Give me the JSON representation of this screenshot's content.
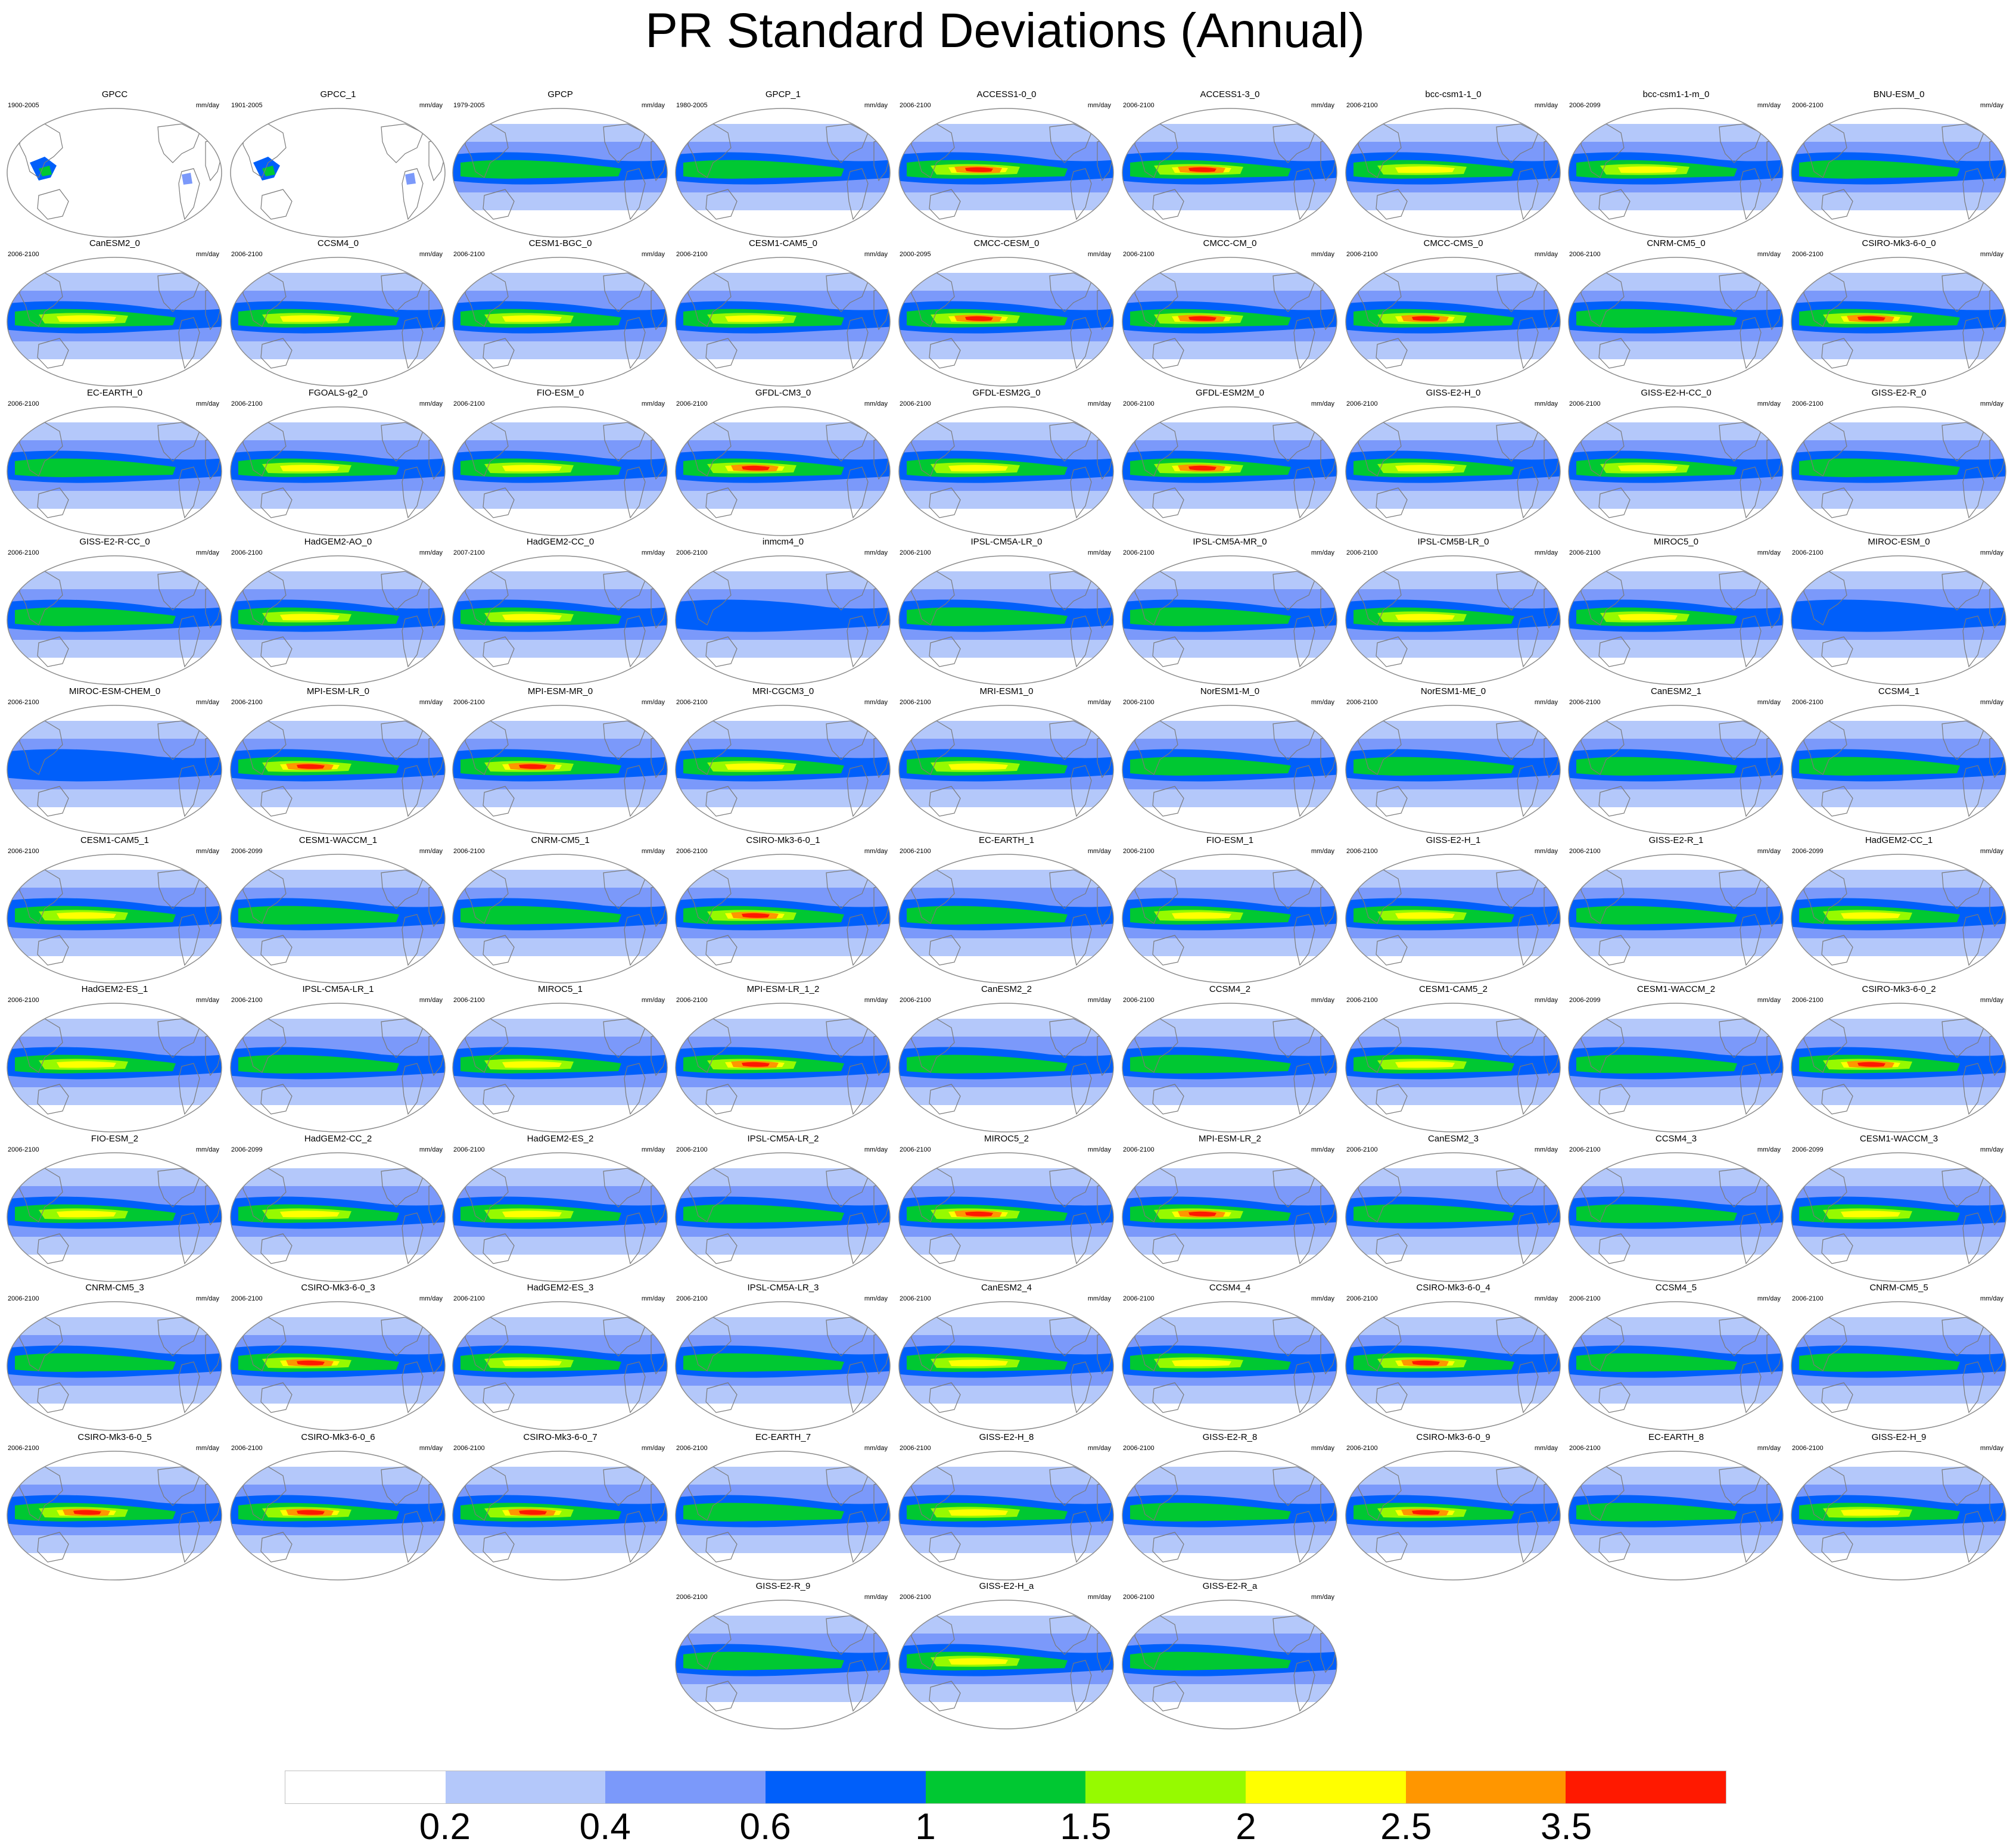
{
  "title": "PR Standard Deviations (Annual)",
  "units": "mm/day",
  "colorbar": {
    "colors": [
      "#ffffff",
      "#b4c8fa",
      "#7b99fa",
      "#005ffa",
      "#00c832",
      "#96fa00",
      "#ffff00",
      "#ff9600",
      "#ff1900"
    ],
    "labels": [
      "0.2",
      "0.4",
      "0.6",
      "1",
      "1.5",
      "2",
      "2.5",
      "3.5"
    ]
  },
  "panels": [
    {
      "name": "GPCC",
      "years": "1900-2005",
      "intensity": 0
    },
    {
      "name": "GPCC_1",
      "years": "1901-2005",
      "intensity": 0
    },
    {
      "name": "GPCP",
      "years": "1979-2005",
      "intensity": 2
    },
    {
      "name": "GPCP_1",
      "years": "1980-2005",
      "intensity": 2
    },
    {
      "name": "ACCESS1-0_0",
      "years": "2006-2100",
      "intensity": 4
    },
    {
      "name": "ACCESS1-3_0",
      "years": "2006-2100",
      "intensity": 4
    },
    {
      "name": "bcc-csm1-1_0",
      "years": "2006-2100",
      "intensity": 3
    },
    {
      "name": "bcc-csm1-1-m_0",
      "years": "2006-2099",
      "intensity": 3
    },
    {
      "name": "BNU-ESM_0",
      "years": "2006-2100",
      "intensity": 2
    },
    {
      "name": "CanESM2_0",
      "years": "2006-2100",
      "intensity": 3
    },
    {
      "name": "CCSM4_0",
      "years": "2006-2100",
      "intensity": 3
    },
    {
      "name": "CESM1-BGC_0",
      "years": "2006-2100",
      "intensity": 3
    },
    {
      "name": "CESM1-CAM5_0",
      "years": "2006-2100",
      "intensity": 3
    },
    {
      "name": "CMCC-CESM_0",
      "years": "2000-2095",
      "intensity": 4
    },
    {
      "name": "CMCC-CM_0",
      "years": "2006-2100",
      "intensity": 4
    },
    {
      "name": "CMCC-CMS_0",
      "years": "2006-2100",
      "intensity": 4
    },
    {
      "name": "CNRM-CM5_0",
      "years": "2006-2100",
      "intensity": 2
    },
    {
      "name": "CSIRO-Mk3-6-0_0",
      "years": "2006-2100",
      "intensity": 4
    },
    {
      "name": "EC-EARTH_0",
      "years": "2006-2100",
      "intensity": 2
    },
    {
      "name": "FGOALS-g2_0",
      "years": "2006-2100",
      "intensity": 3
    },
    {
      "name": "FIO-ESM_0",
      "years": "2006-2100",
      "intensity": 3
    },
    {
      "name": "GFDL-CM3_0",
      "years": "2006-2100",
      "intensity": 4
    },
    {
      "name": "GFDL-ESM2G_0",
      "years": "2006-2100",
      "intensity": 3
    },
    {
      "name": "GFDL-ESM2M_0",
      "years": "2006-2100",
      "intensity": 4
    },
    {
      "name": "GISS-E2-H_0",
      "years": "2006-2100",
      "intensity": 3
    },
    {
      "name": "GISS-E2-H-CC_0",
      "years": "2006-2100",
      "intensity": 3
    },
    {
      "name": "GISS-E2-R_0",
      "years": "2006-2100",
      "intensity": 2
    },
    {
      "name": "GISS-E2-R-CC_0",
      "years": "2006-2100",
      "intensity": 2
    },
    {
      "name": "HadGEM2-AO_0",
      "years": "2006-2100",
      "intensity": 3
    },
    {
      "name": "HadGEM2-CC_0",
      "years": "2007-2100",
      "intensity": 3
    },
    {
      "name": "inmcm4_0",
      "years": "2006-2100",
      "intensity": 1
    },
    {
      "name": "IPSL-CM5A-LR_0",
      "years": "2006-2100",
      "intensity": 2
    },
    {
      "name": "IPSL-CM5A-MR_0",
      "years": "2006-2100",
      "intensity": 2
    },
    {
      "name": "IPSL-CM5B-LR_0",
      "years": "2006-2100",
      "intensity": 3
    },
    {
      "name": "MIROC5_0",
      "years": "2006-2100",
      "intensity": 3
    },
    {
      "name": "MIROC-ESM_0",
      "years": "2006-2100",
      "intensity": 1
    },
    {
      "name": "MIROC-ESM-CHEM_0",
      "years": "2006-2100",
      "intensity": 1
    },
    {
      "name": "MPI-ESM-LR_0",
      "years": "2006-2100",
      "intensity": 4
    },
    {
      "name": "MPI-ESM-MR_0",
      "years": "2006-2100",
      "intensity": 4
    },
    {
      "name": "MRI-CGCM3_0",
      "years": "2006-2100",
      "intensity": 3
    },
    {
      "name": "MRI-ESM1_0",
      "years": "2006-2100",
      "intensity": 3
    },
    {
      "name": "NorESM1-M_0",
      "years": "2006-2100",
      "intensity": 2
    },
    {
      "name": "NorESM1-ME_0",
      "years": "2006-2100",
      "intensity": 2
    },
    {
      "name": "CanESM2_1",
      "years": "2006-2100",
      "intensity": 2
    },
    {
      "name": "CCSM4_1",
      "years": "2006-2100",
      "intensity": 2
    },
    {
      "name": "CESM1-CAM5_1",
      "years": "2006-2100",
      "intensity": 3
    },
    {
      "name": "CESM1-WACCM_1",
      "years": "2006-2099",
      "intensity": 2
    },
    {
      "name": "CNRM-CM5_1",
      "years": "2006-2100",
      "intensity": 2
    },
    {
      "name": "CSIRO-Mk3-6-0_1",
      "years": "2006-2100",
      "intensity": 4
    },
    {
      "name": "EC-EARTH_1",
      "years": "2006-2100",
      "intensity": 2
    },
    {
      "name": "FIO-ESM_1",
      "years": "2006-2100",
      "intensity": 3
    },
    {
      "name": "GISS-E2-H_1",
      "years": "2006-2100",
      "intensity": 3
    },
    {
      "name": "GISS-E2-R_1",
      "years": "2006-2100",
      "intensity": 2
    },
    {
      "name": "HadGEM2-CC_1",
      "years": "2006-2099",
      "intensity": 3
    },
    {
      "name": "HadGEM2-ES_1",
      "years": "2006-2100",
      "intensity": 3
    },
    {
      "name": "IPSL-CM5A-LR_1",
      "years": "2006-2100",
      "intensity": 2
    },
    {
      "name": "MIROC5_1",
      "years": "2006-2100",
      "intensity": 3
    },
    {
      "name": "MPI-ESM-LR_1_2",
      "years": "2006-2100",
      "intensity": 4
    },
    {
      "name": "CanESM2_2",
      "years": "2006-2100",
      "intensity": 2
    },
    {
      "name": "CCSM4_2",
      "years": "2006-2100",
      "intensity": 2
    },
    {
      "name": "CESM1-CAM5_2",
      "years": "2006-2100",
      "intensity": 3
    },
    {
      "name": "CESM1-WACCM_2",
      "years": "2006-2099",
      "intensity": 2
    },
    {
      "name": "CSIRO-Mk3-6-0_2",
      "years": "2006-2100",
      "intensity": 4
    },
    {
      "name": "FIO-ESM_2",
      "years": "2006-2100",
      "intensity": 3
    },
    {
      "name": "HadGEM2-CC_2",
      "years": "2006-2099",
      "intensity": 3
    },
    {
      "name": "HadGEM2-ES_2",
      "years": "2006-2100",
      "intensity": 3
    },
    {
      "name": "IPSL-CM5A-LR_2",
      "years": "2006-2100",
      "intensity": 2
    },
    {
      "name": "MIROC5_2",
      "years": "2006-2100",
      "intensity": 4
    },
    {
      "name": "MPI-ESM-LR_2",
      "years": "2006-2100",
      "intensity": 4
    },
    {
      "name": "CanESM2_3",
      "years": "2006-2100",
      "intensity": 2
    },
    {
      "name": "CCSM4_3",
      "years": "2006-2100",
      "intensity": 2
    },
    {
      "name": "CESM1-WACCM_3",
      "years": "2006-2099",
      "intensity": 3
    },
    {
      "name": "CNRM-CM5_3",
      "years": "2006-2100",
      "intensity": 2
    },
    {
      "name": "CSIRO-Mk3-6-0_3",
      "years": "2006-2100",
      "intensity": 4
    },
    {
      "name": "HadGEM2-ES_3",
      "years": "2006-2100",
      "intensity": 3
    },
    {
      "name": "IPSL-CM5A-LR_3",
      "years": "2006-2100",
      "intensity": 2
    },
    {
      "name": "CanESM2_4",
      "years": "2006-2100",
      "intensity": 3
    },
    {
      "name": "CCSM4_4",
      "years": "2006-2100",
      "intensity": 3
    },
    {
      "name": "CSIRO-Mk3-6-0_4",
      "years": "2006-2100",
      "intensity": 4
    },
    {
      "name": "CCSM4_5",
      "years": "2006-2100",
      "intensity": 2
    },
    {
      "name": "CNRM-CM5_5",
      "years": "2006-2100",
      "intensity": 2
    },
    {
      "name": "CSIRO-Mk3-6-0_5",
      "years": "2006-2100",
      "intensity": 4
    },
    {
      "name": "CSIRO-Mk3-6-0_6",
      "years": "2006-2100",
      "intensity": 4
    },
    {
      "name": "CSIRO-Mk3-6-0_7",
      "years": "2006-2100",
      "intensity": 4
    },
    {
      "name": "EC-EARTH_7",
      "years": "2006-2100",
      "intensity": 2
    },
    {
      "name": "GISS-E2-H_8",
      "years": "2006-2100",
      "intensity": 3
    },
    {
      "name": "GISS-E2-R_8",
      "years": "2006-2100",
      "intensity": 2
    },
    {
      "name": "CSIRO-Mk3-6-0_9",
      "years": "2006-2100",
      "intensity": 4
    },
    {
      "name": "EC-EARTH_8",
      "years": "2006-2100",
      "intensity": 2
    },
    {
      "name": "GISS-E2-H_9",
      "years": "2006-2100",
      "intensity": 3
    },
    {
      "name": "GISS-E2-R_9",
      "years": "2006-2100",
      "intensity": 2
    },
    {
      "name": "GISS-E2-H_a",
      "years": "2006-2100",
      "intensity": 3
    },
    {
      "name": "GISS-E2-R_a",
      "years": "2006-2100",
      "intensity": 2
    }
  ]
}
